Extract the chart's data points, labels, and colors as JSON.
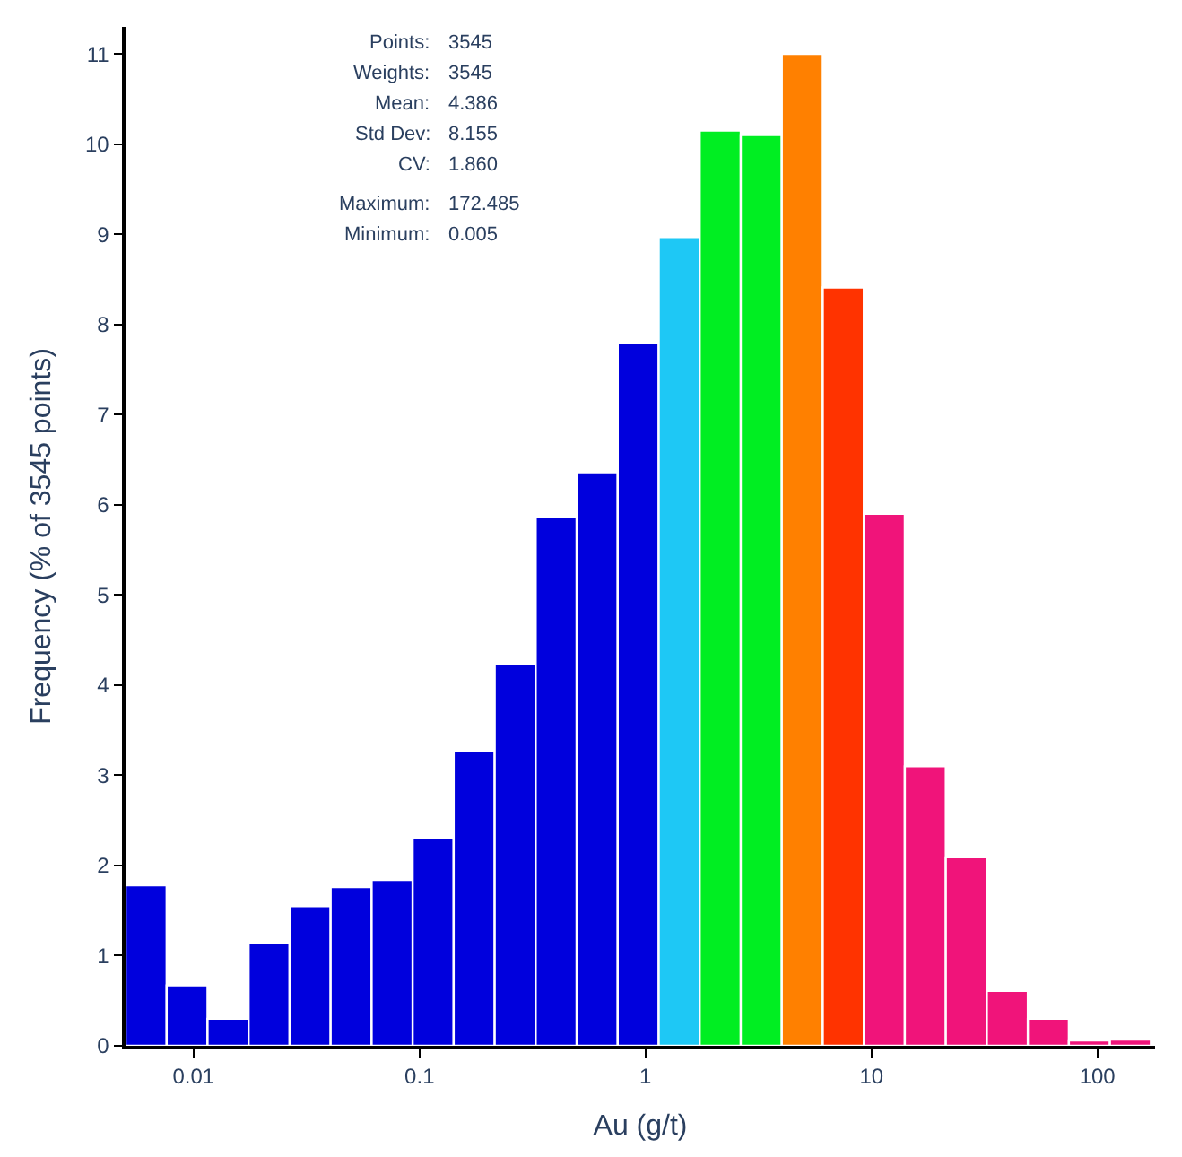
{
  "chart_data": {
    "type": "histogram",
    "xlabel": "Au (g/t)",
    "ylabel": "Frequency (% of 3545 points)",
    "bins": [
      0.005,
      0.0076,
      0.01153,
      0.01752,
      0.02661,
      0.04042,
      0.06139,
      0.09322,
      0.1416,
      0.2151,
      0.3266,
      0.4961,
      0.7535,
      1.1444,
      1.738,
      2.64,
      4.01,
      6.09,
      9.252,
      14.05,
      21.34,
      32.41,
      49.23,
      74.78,
      113.6,
      172.485
    ],
    "values": [
      1.78,
      0.67,
      0.3,
      1.14,
      1.55,
      1.76,
      1.84,
      2.3,
      3.27,
      4.24,
      5.87,
      6.36,
      7.8,
      8.97,
      10.15,
      10.1,
      11.0,
      8.41,
      5.9,
      3.1,
      2.09,
      0.61,
      0.3,
      0.06,
      0.07
    ],
    "colors": [
      "#0000dd",
      "#0000dd",
      "#0000dd",
      "#0000dd",
      "#0000dd",
      "#0000dd",
      "#0000dd",
      "#0000dd",
      "#0000dd",
      "#0000dd",
      "#0000dd",
      "#0000dd",
      "#0000dd",
      "#1ec8f5",
      "#00ee22",
      "#00ee22",
      "#ff8000",
      "#ff3300",
      "#f0147a",
      "#f0147a",
      "#f0147a",
      "#f0147a",
      "#f0147a",
      "#f0147a",
      "#f0147a"
    ],
    "log": "x",
    "xlim": [
      0.005,
      180
    ],
    "xticks": [
      0.01,
      0.1,
      1,
      10,
      100
    ],
    "ylim": [
      0,
      11.3
    ],
    "yticks": [
      0,
      1,
      2,
      3,
      4,
      5,
      6,
      7,
      8,
      9,
      10,
      11
    ],
    "annotations": [
      "Points: 3545",
      "Weights: 3545",
      "Mean: 4.386",
      "Std Dev: 8.155",
      "CV: 1.860",
      "Maximum: 172.485",
      "Minimum: 0.005"
    ]
  }
}
